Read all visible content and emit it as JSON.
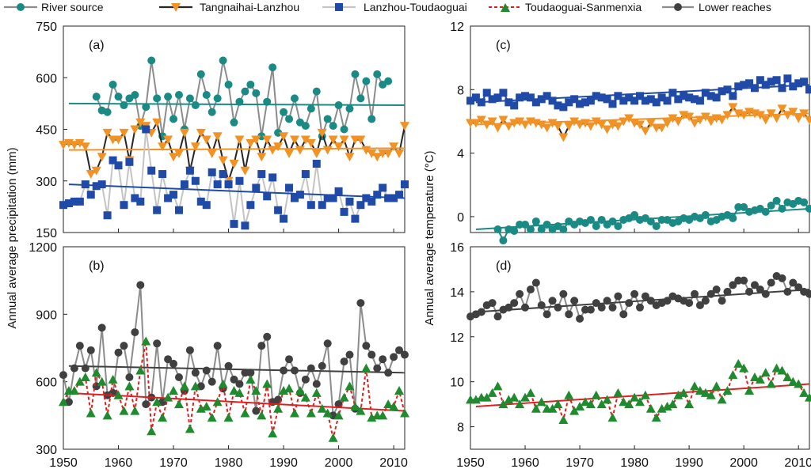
{
  "figure": {
    "legend": [
      {
        "label": "River source",
        "color": "#1a8a84",
        "marker": "circle",
        "line": "solid-gray"
      },
      {
        "label": "Tangnaihai-Lanzhou",
        "color": "#f39224",
        "marker": "triangle-down",
        "line": "solid-dark"
      },
      {
        "label": "Lanzhou-Toudaoguai",
        "color": "#1f4aa8",
        "marker": "square",
        "line": "solid-lightgray"
      },
      {
        "label": "Toudaoguai-Sanmenxia",
        "color": "#1f8a2e",
        "marker": "triangle-up",
        "line": "dashed-red"
      },
      {
        "label": "Lower reaches",
        "color": "#404040",
        "marker": "circle",
        "line": "solid-gray"
      }
    ],
    "ylabel_left": "Annual average precipitation (mm)",
    "ylabel_right": "Annual average temperature  (°C)",
    "x_ticks": [
      "1950",
      "1960",
      "1970",
      "1980",
      "1990",
      "2000",
      "2010"
    ]
  },
  "chart_data": [
    {
      "id": "a",
      "label": "(a)",
      "type": "line",
      "xlim": [
        1950,
        2012
      ],
      "ylim": [
        150,
        750
      ],
      "y_ticks": [
        "150",
        "300",
        "450",
        "600",
        "750"
      ],
      "series": [
        {
          "name": "River source",
          "x_start": 1956,
          "values": [
            545,
            505,
            500,
            580,
            545,
            520,
            540,
            550,
            460,
            515,
            650,
            540,
            430,
            545,
            480,
            550,
            450,
            540,
            520,
            610,
            550,
            500,
            540,
            650,
            580,
            470,
            530,
            560,
            580,
            555,
            430,
            530,
            630,
            440,
            500,
            480,
            540,
            470,
            460,
            510,
            560,
            430,
            480,
            460,
            520,
            450,
            510,
            610,
            540,
            590,
            480,
            610,
            580,
            590
          ],
          "trend": [
            525,
            520
          ],
          "trend_color": "#1a8a84"
        },
        {
          "name": "Tangnaihai-Lanzhou",
          "x_start": 1950,
          "values": [
            405,
            410,
            405,
            410,
            400,
            320,
            330,
            370,
            440,
            420,
            420,
            440,
            360,
            450,
            470,
            460,
            440,
            470,
            400,
            420,
            370,
            380,
            440,
            330,
            400,
            440,
            420,
            380,
            430,
            360,
            300,
            350,
            420,
            330,
            410,
            420,
            370,
            420,
            390,
            400,
            430,
            380,
            420,
            390,
            420,
            410,
            380,
            440,
            390,
            420,
            400,
            420,
            370,
            420,
            420,
            390,
            380,
            370,
            380,
            380,
            400,
            380,
            460
          ],
          "trend": [
            390,
            395
          ],
          "trend_color": "#f39224"
        },
        {
          "name": "Lanzhou-Toudaoguai",
          "x_start": 1950,
          "values": [
            230,
            235,
            240,
            240,
            290,
            260,
            285,
            290,
            200,
            360,
            345,
            230,
            355,
            250,
            240,
            450,
            330,
            215,
            320,
            250,
            260,
            215,
            290,
            330,
            300,
            240,
            230,
            325,
            290,
            320,
            290,
            175,
            300,
            170,
            230,
            280,
            320,
            255,
            310,
            215,
            190,
            280,
            250,
            260,
            320,
            230,
            350,
            230,
            250,
            250,
            270,
            210,
            240,
            190,
            230,
            250,
            240,
            260,
            280,
            250,
            250,
            260,
            290
          ],
          "trend": [
            290,
            250
          ],
          "trend_color": "#1f4aa8"
        }
      ]
    },
    {
      "id": "b",
      "label": "(b)",
      "type": "line",
      "xlim": [
        1950,
        2012
      ],
      "ylim": [
        300,
        1200
      ],
      "y_ticks": [
        "300",
        "600",
        "900",
        "1200"
      ],
      "series": [
        {
          "name": "Lower reaches",
          "x_start": 1950,
          "values": [
            630,
            510,
            660,
            760,
            660,
            740,
            580,
            840,
            540,
            550,
            730,
            760,
            620,
            820,
            1030,
            500,
            530,
            770,
            510,
            700,
            680,
            620,
            560,
            740,
            640,
            580,
            650,
            600,
            760,
            570,
            670,
            610,
            590,
            640,
            640,
            470,
            760,
            800,
            510,
            520,
            650,
            700,
            650,
            550,
            610,
            660,
            590,
            670,
            770,
            450,
            500,
            690,
            720,
            480,
            950,
            760,
            720,
            660,
            700,
            640,
            710,
            740,
            720
          ],
          "trend": [
            670,
            640
          ],
          "trend_color": "#404040"
        },
        {
          "name": "Toudaoguai-Sanmenxia",
          "x_start": 1950,
          "values": [
            510,
            560,
            560,
            600,
            620,
            460,
            640,
            600,
            450,
            610,
            540,
            470,
            580,
            470,
            650,
            780,
            380,
            510,
            440,
            530,
            560,
            500,
            580,
            390,
            580,
            480,
            490,
            440,
            510,
            590,
            440,
            560,
            550,
            460,
            610,
            560,
            450,
            590,
            370,
            480,
            560,
            570,
            460,
            560,
            530,
            460,
            550,
            480,
            460,
            350,
            450,
            530,
            580,
            490,
            470,
            660,
            440,
            450,
            450,
            500,
            490,
            560,
            460
          ],
          "trend": [
            550,
            470
          ],
          "trend_color": "#e02020"
        }
      ]
    },
    {
      "id": "c",
      "label": "(c)",
      "type": "line",
      "xlim": [
        1950,
        2012
      ],
      "ylim": [
        -1,
        12
      ],
      "y_ticks": [
        "0",
        "4",
        "8",
        "12"
      ],
      "series": [
        {
          "name": "Lanzhou-Toudaoguai",
          "x_start": 1950,
          "values": [
            7.3,
            7.5,
            7.2,
            7.8,
            7.4,
            7.5,
            7.8,
            7.2,
            7.0,
            7.5,
            7.6,
            7.5,
            7.2,
            7.4,
            7.6,
            7.3,
            7.0,
            6.9,
            7.2,
            7.4,
            7.1,
            7.2,
            7.3,
            7.6,
            7.5,
            7.4,
            7.1,
            7.6,
            7.3,
            7.5,
            7.3,
            7.6,
            7.3,
            7.4,
            7.2,
            7.5,
            7.3,
            7.8,
            7.4,
            7.6,
            7.5,
            7.4,
            7.3,
            7.8,
            7.6,
            7.5,
            7.9,
            8.0,
            7.6,
            8.2,
            8.3,
            8.4,
            8.1,
            8.6,
            8.3,
            8.5,
            8.6,
            8.1,
            8.7,
            8.2,
            8.4,
            8.5,
            8.0
          ],
          "trend": [
            7.2,
            8.3
          ],
          "trend_color": "#1f4aa8"
        },
        {
          "name": "Tangnaihai-Lanzhou",
          "x_start": 1950,
          "values": [
            5.9,
            5.9,
            6.1,
            5.8,
            6.0,
            5.6,
            6.1,
            5.7,
            5.9,
            6.0,
            5.8,
            6.0,
            5.9,
            5.8,
            5.6,
            5.9,
            5.7,
            5.0,
            5.7,
            6.0,
            5.8,
            5.9,
            5.7,
            6.0,
            5.8,
            5.5,
            5.8,
            5.7,
            6.0,
            6.2,
            5.9,
            5.8,
            5.4,
            5.9,
            5.6,
            5.6,
            5.9,
            6.2,
            6.0,
            6.4,
            6.3,
            5.9,
            6.1,
            6.3,
            6.0,
            6.2,
            6.1,
            6.4,
            6.9,
            6.5,
            6.4,
            6.6,
            6.5,
            6.4,
            6.1,
            6.5,
            6.2,
            6.8,
            6.4,
            6.6,
            6.2,
            6.5,
            6.1
          ],
          "trend": [
            5.8,
            6.5
          ],
          "trend_color": "#f39224"
        },
        {
          "name": "River source",
          "x_start": 1950,
          "values": [
            null,
            null,
            null,
            null,
            null,
            -0.8,
            -1.5,
            -0.8,
            -0.9,
            -0.5,
            -0.5,
            -0.8,
            -0.3,
            -0.8,
            -0.5,
            -0.8,
            -0.6,
            -0.8,
            -0.3,
            -0.5,
            -0.3,
            -0.4,
            -0.2,
            -0.6,
            -0.2,
            -0.5,
            -0.3,
            -0.6,
            -0.2,
            -0.1,
            0.1,
            -0.2,
            -0.1,
            -0.3,
            -0.6,
            -0.2,
            -0.2,
            -0.4,
            -0.3,
            -0.1,
            -0.2,
            0.0,
            -0.1,
            0.1,
            -0.3,
            -0.2,
            0.0,
            0.1,
            -0.1,
            0.6,
            0.6,
            0.3,
            0.4,
            0.5,
            0.3,
            0.7,
            1.0,
            0.5,
            0.9,
            0.8,
            1.0,
            0.9,
            0.5
          ],
          "trend": [
            -0.8,
            0.5
          ],
          "trend_color": "#1a8a84"
        }
      ]
    },
    {
      "id": "d",
      "label": "(d)",
      "type": "line",
      "xlim": [
        1950,
        2012
      ],
      "ylim": [
        7,
        16
      ],
      "y_ticks": [
        "8",
        "10",
        "12",
        "14",
        "16"
      ],
      "series": [
        {
          "name": "Lower reaches",
          "x_start": 1950,
          "values": [
            12.9,
            13.0,
            13.1,
            13.4,
            13.5,
            12.9,
            13.2,
            13.3,
            13.5,
            13.9,
            13.3,
            14.1,
            14.4,
            13.4,
            13.0,
            13.6,
            13.3,
            13.9,
            13.0,
            13.6,
            12.8,
            13.2,
            13.2,
            13.5,
            13.3,
            13.6,
            13.3,
            13.8,
            13.0,
            13.5,
            13.9,
            13.3,
            13.8,
            13.6,
            13.4,
            13.5,
            13.6,
            13.8,
            13.7,
            13.6,
            13.5,
            13.9,
            13.4,
            13.6,
            13.9,
            14.1,
            13.6,
            14.0,
            14.3,
            14.5,
            14.5,
            14.0,
            14.3,
            14.1,
            13.9,
            14.4,
            14.7,
            14.6,
            14.0,
            14.4,
            14.2,
            14.0,
            13.9
          ],
          "trend": [
            13.1,
            14.1
          ],
          "trend_color": "#404040"
        },
        {
          "name": "Toudaoguai-Sanmenxia",
          "x_start": 1950,
          "values": [
            9.2,
            9.2,
            9.3,
            9.3,
            9.5,
            9.8,
            9.0,
            9.2,
            9.3,
            9.0,
            9.3,
            9.5,
            8.8,
            9.1,
            8.8,
            8.8,
            9.0,
            8.3,
            9.4,
            8.7,
            8.9,
            9.1,
            9.0,
            9.4,
            9.0,
            9.2,
            8.4,
            9.5,
            9.1,
            9.0,
            9.3,
            9.1,
            9.4,
            8.8,
            8.4,
            8.8,
            8.9,
            9.0,
            9.4,
            9.5,
            9.0,
            9.8,
            9.6,
            9.5,
            9.4,
            9.8,
            9.2,
            9.6,
            10.3,
            10.8,
            10.6,
            9.6,
            10.2,
            10.1,
            10.4,
            9.9,
            10.6,
            10.5,
            10.2,
            10.0,
            9.9,
            9.5,
            9.3
          ],
          "trend": [
            8.9,
            9.9
          ],
          "trend_color": "#e02020"
        }
      ]
    }
  ]
}
